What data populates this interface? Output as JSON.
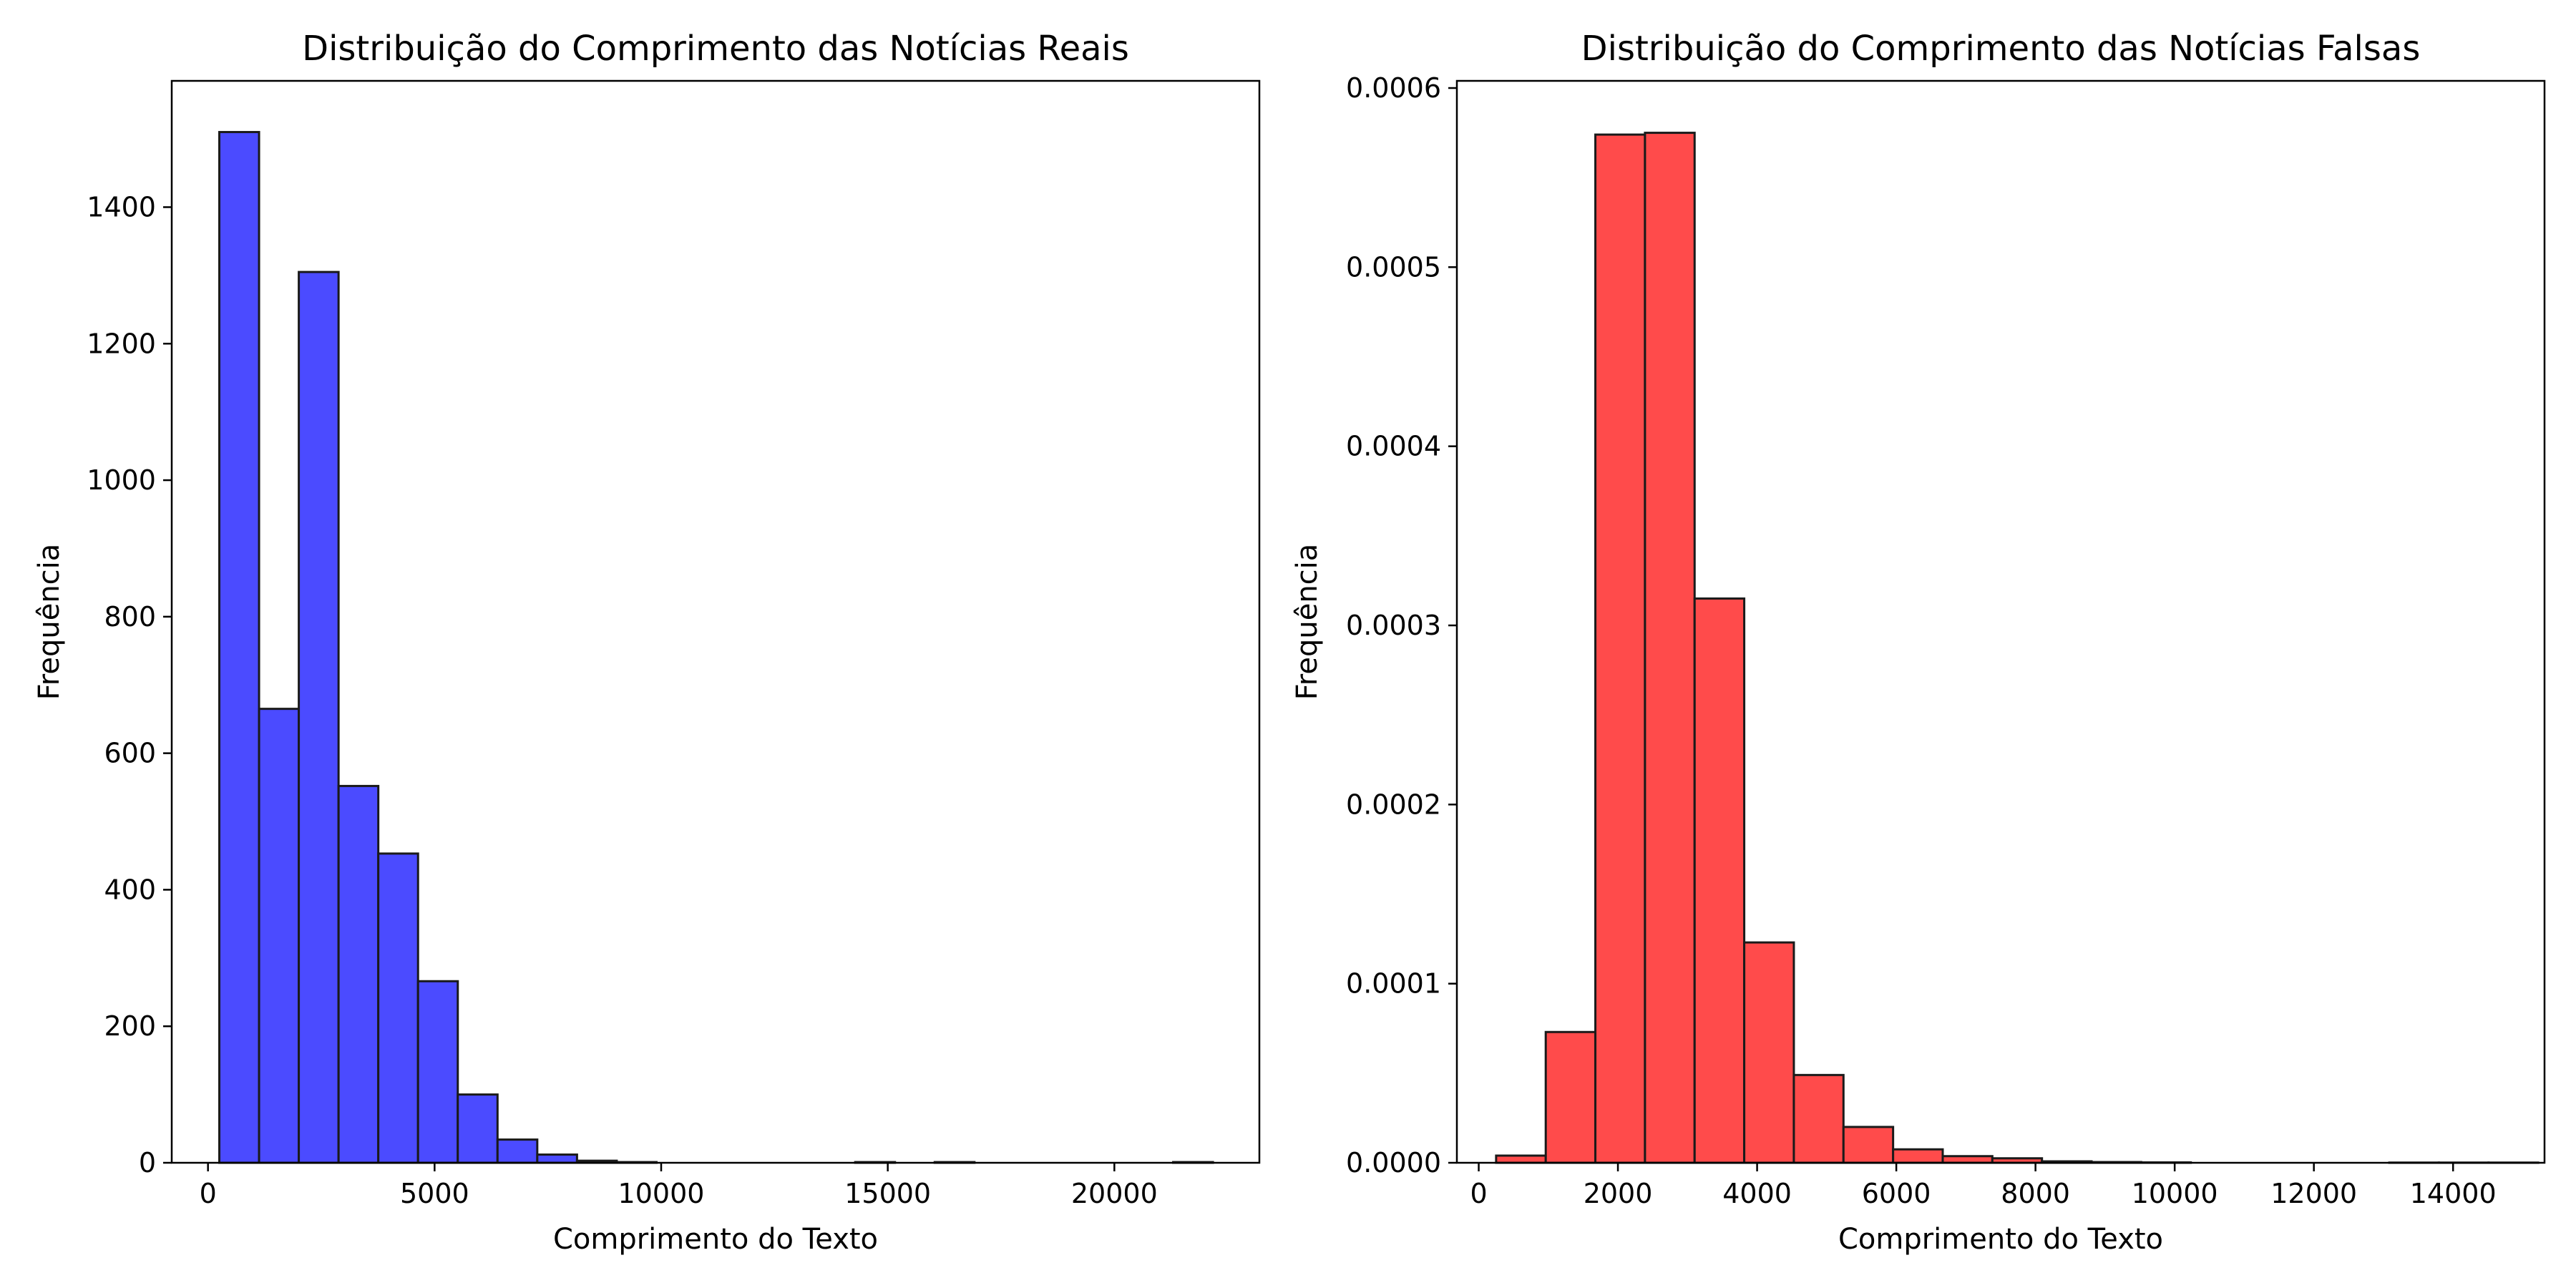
{
  "chart_data": [
    {
      "type": "bar",
      "title": "Distribuição do Comprimento das Notícias Reais",
      "xlabel": "Comprimento do Texto",
      "ylabel": "Frequência",
      "xlim": [
        -800,
        23200
      ],
      "ylim": [
        0,
        1585
      ],
      "xticks": [
        0,
        5000,
        10000,
        15000,
        20000
      ],
      "xtick_labels": [
        "0",
        "5000",
        "10000",
        "15000",
        "20000"
      ],
      "yticks": [
        0,
        200,
        400,
        600,
        800,
        1000,
        1200,
        1400
      ],
      "ytick_labels": [
        "0",
        "200",
        "400",
        "600",
        "800",
        "1000",
        "1200",
        "1400"
      ],
      "color": "#4b4bff",
      "edge_color": "#1a1a1a",
      "grid": false,
      "bins": [
        {
          "start": 250,
          "end": 1127,
          "value": 1510
        },
        {
          "start": 1127,
          "end": 2004,
          "value": 665
        },
        {
          "start": 2004,
          "end": 2881,
          "value": 1305
        },
        {
          "start": 2881,
          "end": 3758,
          "value": 552
        },
        {
          "start": 3758,
          "end": 4635,
          "value": 453
        },
        {
          "start": 4635,
          "end": 5512,
          "value": 266
        },
        {
          "start": 5512,
          "end": 6389,
          "value": 100
        },
        {
          "start": 6389,
          "end": 7266,
          "value": 34
        },
        {
          "start": 7266,
          "end": 8143,
          "value": 12
        },
        {
          "start": 8143,
          "end": 9020,
          "value": 3
        },
        {
          "start": 9020,
          "end": 9897,
          "value": 1
        },
        {
          "start": 9897,
          "end": 10774,
          "value": 0
        },
        {
          "start": 10774,
          "end": 11651,
          "value": 0
        },
        {
          "start": 11651,
          "end": 12528,
          "value": 0
        },
        {
          "start": 12528,
          "end": 13405,
          "value": 0
        },
        {
          "start": 13405,
          "end": 14282,
          "value": 0
        },
        {
          "start": 14282,
          "end": 15159,
          "value": 1
        },
        {
          "start": 15159,
          "end": 16036,
          "value": 0
        },
        {
          "start": 16036,
          "end": 16913,
          "value": 1
        },
        {
          "start": 16913,
          "end": 17790,
          "value": 0
        },
        {
          "start": 17790,
          "end": 18667,
          "value": 0
        },
        {
          "start": 18667,
          "end": 19544,
          "value": 0
        },
        {
          "start": 19544,
          "end": 20421,
          "value": 0
        },
        {
          "start": 20421,
          "end": 21298,
          "value": 0
        },
        {
          "start": 21298,
          "end": 22175,
          "value": 1
        }
      ]
    },
    {
      "type": "bar",
      "title": "Distribuição do Comprimento das Notícias Falsas",
      "xlabel": "Comprimento do Texto",
      "ylabel": "Frequência",
      "xlim": [
        -314,
        15314
      ],
      "ylim": [
        0,
        0.000604
      ],
      "xticks": [
        0,
        2000,
        4000,
        6000,
        8000,
        10000,
        12000,
        14000
      ],
      "xtick_labels": [
        "0",
        "2000",
        "4000",
        "6000",
        "8000",
        "10000",
        "12000",
        "14000"
      ],
      "yticks": [
        0,
        0.0001,
        0.0002,
        0.0003,
        0.0004,
        0.0005,
        0.0006
      ],
      "ytick_labels": [
        "0.0000",
        "0.0001",
        "0.0002",
        "0.0003",
        "0.0004",
        "0.0005",
        "0.0006"
      ],
      "color": "#ff4b4b",
      "edge_color": "#1a1a1a",
      "grid": false,
      "bins": [
        {
          "start": 250,
          "end": 963,
          "value": 4e-06
        },
        {
          "start": 963,
          "end": 1676,
          "value": 7.3e-05
        },
        {
          "start": 1676,
          "end": 2389,
          "value": 0.000574
        },
        {
          "start": 2389,
          "end": 3102,
          "value": 0.000575
        },
        {
          "start": 3102,
          "end": 3815,
          "value": 0.000315
        },
        {
          "start": 3815,
          "end": 4528,
          "value": 0.000123
        },
        {
          "start": 4528,
          "end": 5241,
          "value": 4.9e-05
        },
        {
          "start": 5241,
          "end": 5954,
          "value": 2e-05
        },
        {
          "start": 5954,
          "end": 6667,
          "value": 7.5e-06
        },
        {
          "start": 6667,
          "end": 7380,
          "value": 3.7e-06
        },
        {
          "start": 7380,
          "end": 8093,
          "value": 2.5e-06
        },
        {
          "start": 8093,
          "end": 8806,
          "value": 8e-07
        },
        {
          "start": 8806,
          "end": 9519,
          "value": 4e-07
        },
        {
          "start": 9519,
          "end": 10232,
          "value": 2e-07
        },
        {
          "start": 10232,
          "end": 10945,
          "value": 0
        },
        {
          "start": 10945,
          "end": 11658,
          "value": 0
        },
        {
          "start": 11658,
          "end": 12371,
          "value": 0
        },
        {
          "start": 12371,
          "end": 13084,
          "value": 0
        },
        {
          "start": 13084,
          "end": 13797,
          "value": 1e-07
        },
        {
          "start": 13797,
          "end": 14510,
          "value": 1e-07
        },
        {
          "start": 14510,
          "end": 15223,
          "value": 1e-07
        }
      ]
    }
  ]
}
